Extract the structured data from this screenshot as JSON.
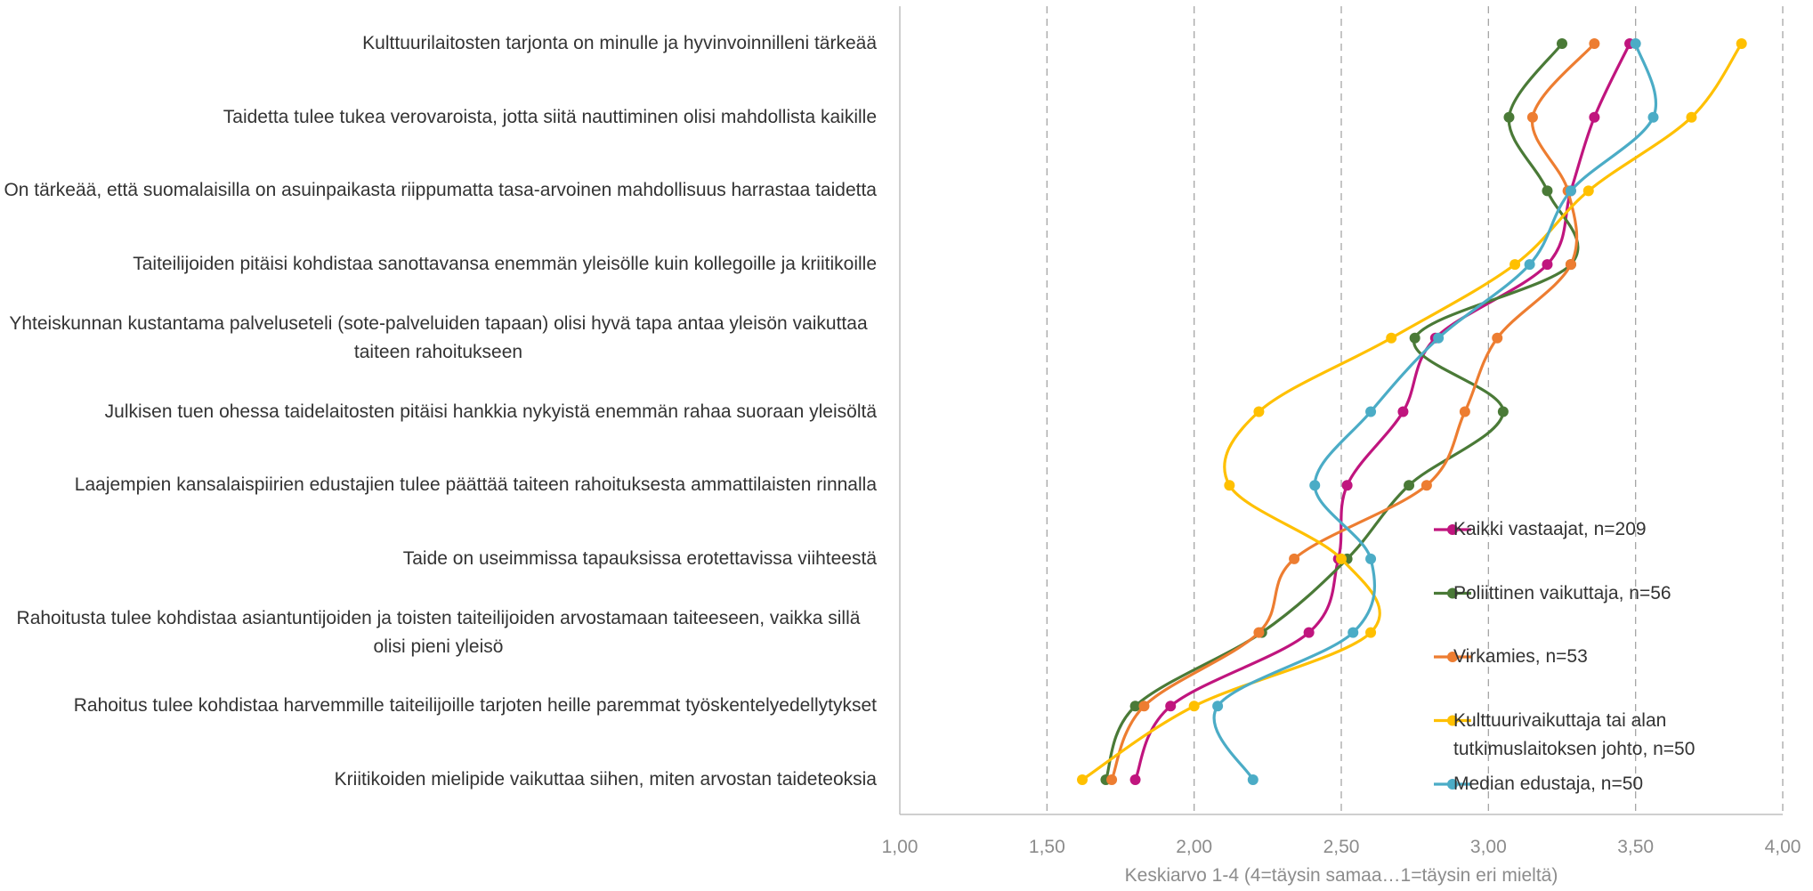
{
  "chart_data": {
    "type": "line",
    "orientation": "horizontal",
    "categories": [
      "Kulttuurilaitosten tarjonta on minulle ja hyvinvoinnilleni tärkeää",
      "Taidetta tulee tukea verovaroista, jotta siitä nauttiminen olisi mahdollista kaikille",
      "On tärkeää, että suomalaisilla on asuinpaikasta riippumatta tasa-arvoinen mahdollisuus harrastaa taidetta",
      "Taiteilijoiden pitäisi kohdistaa sanottavansa enemmän yleisölle kuin kollegoille ja kriitikoille",
      "Yhteiskunnan kustantama palveluseteli (sote-palveluiden tapaan) olisi hyvä tapa antaa yleisön vaikuttaa taiteen rahoitukseen",
      "Julkisen tuen ohessa taidelaitosten pitäisi hankkia nykyistä enemmän rahaa suoraan yleisöltä",
      "Laajempien kansalaispiirien edustajien tulee päättää taiteen rahoituksesta ammattilaisten rinnalla",
      "Taide on useimmissa tapauksissa erotettavissa viihteestä",
      "Rahoitusta tulee kohdistaa asiantuntijoiden ja toisten taiteilijoiden arvostamaan taiteeseen, vaikka sillä olisi pieni yleisö",
      "Rahoitus tulee kohdistaa harvemmille taiteilijoille tarjoten heille paremmat työskentelyedellytykset",
      "Kriitikoiden mielipide vaikuttaa siihen, miten arvostan taideteoksia"
    ],
    "series": [
      {
        "name": "Kaikki vastaajat, n=209",
        "color": "#c0157e",
        "values": [
          3.48,
          3.36,
          3.28,
          3.2,
          2.82,
          2.71,
          2.52,
          2.49,
          2.39,
          1.92,
          1.8
        ]
      },
      {
        "name": "Poliittinen vaikuttaja, n=56",
        "color": "#4a7a37",
        "values": [
          3.25,
          3.07,
          3.2,
          3.28,
          2.75,
          3.05,
          2.73,
          2.52,
          2.23,
          1.8,
          1.7
        ]
      },
      {
        "name": "Virkamies, n=53",
        "color": "#ed7d31",
        "values": [
          3.36,
          3.15,
          3.27,
          3.28,
          3.03,
          2.92,
          2.79,
          2.34,
          2.22,
          1.83,
          1.72
        ]
      },
      {
        "name": "Kulttuurivaikuttaja tai alan tutkimuslaitoksen johto, n=50",
        "color": "#ffc000",
        "values": [
          3.86,
          3.69,
          3.34,
          3.09,
          2.67,
          2.22,
          2.12,
          2.5,
          2.6,
          2.0,
          1.62
        ]
      },
      {
        "name": "Median edustaja, n=50",
        "color": "#4bacc6",
        "values": [
          3.5,
          3.56,
          3.28,
          3.14,
          2.83,
          2.6,
          2.41,
          2.6,
          2.54,
          2.08,
          2.2
        ]
      }
    ],
    "xlim": [
      1,
      4
    ],
    "xticks": [
      {
        "value": 1,
        "label": "1,00"
      },
      {
        "value": 1.5,
        "label": "1,50"
      },
      {
        "value": 2,
        "label": "2,00"
      },
      {
        "value": 2.5,
        "label": "2,50"
      },
      {
        "value": 3,
        "label": "3,00"
      },
      {
        "value": 3.5,
        "label": "3,50"
      },
      {
        "value": 4,
        "label": "4,00"
      }
    ],
    "x_label": "Keskiarvo 1-4 (4=täysin samaa…1=täysin eri mieltä)",
    "grid": true,
    "legend": "lower right"
  }
}
